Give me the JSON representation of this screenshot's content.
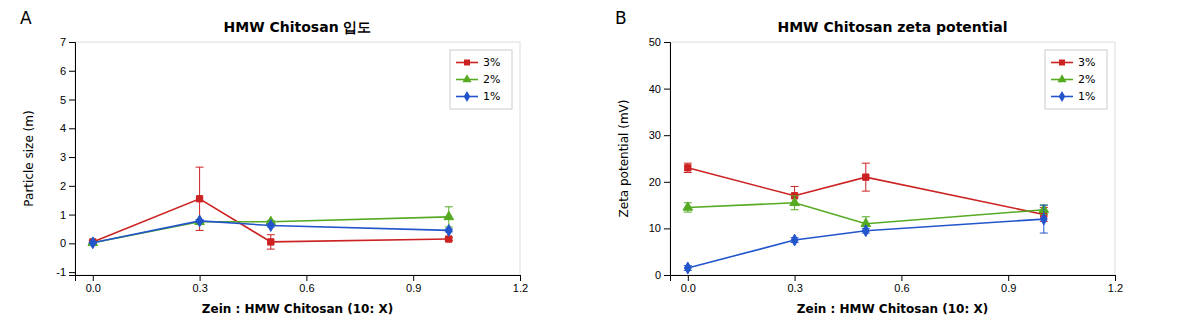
{
  "chart_data": [
    {
      "type": "line",
      "title": "HMW Chitosan 입도",
      "x_label": "Zein : HMW Chitosan (10: X)",
      "y_label": "Particle size (m)",
      "annotations": [
        "A"
      ],
      "xlim": [
        -0.05,
        1.2
      ],
      "ylim": [
        -1.1,
        7
      ],
      "xticks": [
        {
          "value": 0,
          "label": "0.0"
        },
        0.3,
        0.6,
        0.9,
        1.2
      ],
      "yticks": [
        -1,
        0,
        1,
        2,
        3,
        4,
        5,
        6,
        7
      ],
      "x": [
        0,
        0.3,
        0.5,
        1.0
      ],
      "series": [
        {
          "name": "3%",
          "color": "#cc2222",
          "marker": "square",
          "values": [
            0.05,
            1.55,
            0.05,
            0.15
          ],
          "errors": [
            0.05,
            1.1,
            0.25,
            0.05
          ]
        },
        {
          "name": "2%",
          "color": "#55aa22",
          "marker": "triangle",
          "values": [
            0.02,
            0.75,
            0.75,
            0.92
          ],
          "errors": [
            0.02,
            0.05,
            0.05,
            0.35
          ]
        },
        {
          "name": "1%",
          "color": "#2255cc",
          "marker": "diamond",
          "values": [
            0.02,
            0.78,
            0.62,
            0.45
          ],
          "errors": [
            0.02,
            0.05,
            0.05,
            0.05
          ]
        }
      ],
      "legend": "upper right",
      "grid": false
    },
    {
      "type": "line",
      "title": "HMW Chitosan zeta potential",
      "x_label": "Zein : HMW Chitosan (10: X)",
      "y_label": "Zeta potential (mV)",
      "annotations": [
        "B"
      ],
      "xlim": [
        -0.05,
        1.2
      ],
      "ylim": [
        0,
        50
      ],
      "xticks": [
        {
          "value": 0,
          "label": "0.0"
        },
        0.3,
        0.6,
        0.9,
        1.2
      ],
      "yticks": [
        0,
        10,
        20,
        30,
        40,
        50
      ],
      "x": [
        0,
        0.3,
        0.5,
        1.0
      ],
      "series": [
        {
          "name": "3%",
          "color": "#cc2222",
          "marker": "square",
          "values": [
            23.0,
            17.0,
            21.0,
            13.0
          ],
          "errors": [
            1.0,
            2.0,
            3.0,
            1.5
          ]
        },
        {
          "name": "2%",
          "color": "#55aa22",
          "marker": "triangle",
          "values": [
            14.5,
            15.5,
            11.0,
            14.0
          ],
          "errors": [
            1.0,
            1.5,
            1.5,
            1.0
          ]
        },
        {
          "name": "1%",
          "color": "#2255cc",
          "marker": "diamond",
          "values": [
            1.5,
            7.5,
            9.5,
            12.0
          ],
          "errors": [
            0.5,
            0.5,
            0.5,
            3.0
          ]
        }
      ],
      "legend": "upper right",
      "grid": false
    }
  ]
}
